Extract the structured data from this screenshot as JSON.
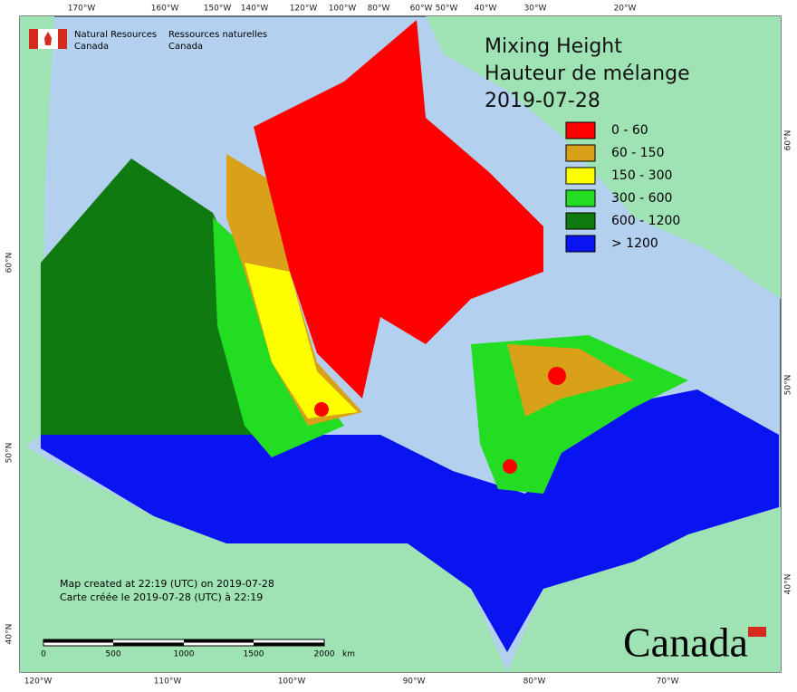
{
  "header": {
    "agency_en": "Natural Resources",
    "agency_en_2": "Canada",
    "agency_fr": "Ressources naturelles",
    "agency_fr_2": "Canada"
  },
  "title": [
    "Mixing Height",
    "Hauteur de mélange",
    "2019-07-28"
  ],
  "legend": [
    {
      "label": "0 - 60",
      "color": "#ff0000"
    },
    {
      "label": "60 - 150",
      "color": "#d9a01a"
    },
    {
      "label": "150 - 300",
      "color": "#ffff00"
    },
    {
      "label": "300 - 600",
      "color": "#22dd22"
    },
    {
      "label": "600 - 1200",
      "color": "#0f7a0f"
    },
    {
      "label": "> 1200",
      "color": "#0a14f0"
    }
  ],
  "graticule": {
    "top": [
      "170°W",
      "160°W",
      "150°W",
      "140°W",
      "120°W",
      "100°W",
      "80°W",
      "60°W",
      "50°W",
      "40°W",
      "30°W",
      "20°W"
    ],
    "bottom": [
      "120°W",
      "110°W",
      "100°W",
      "90°W",
      "80°W",
      "70°W"
    ],
    "left": [
      "60°N",
      "50°N",
      "40°N"
    ],
    "right": [
      "60°N",
      "50°N",
      "40°N"
    ]
  },
  "scale": {
    "labels": [
      "0",
      "500",
      "1000",
      "1500",
      "2000"
    ],
    "unit": "km"
  },
  "footnote": [
    "Map created at 22:19 (UTC) on 2019-07-28",
    "Carte créée le 2019-07-28 (UTC) à 22:19"
  ],
  "wordmark": "Canada"
}
